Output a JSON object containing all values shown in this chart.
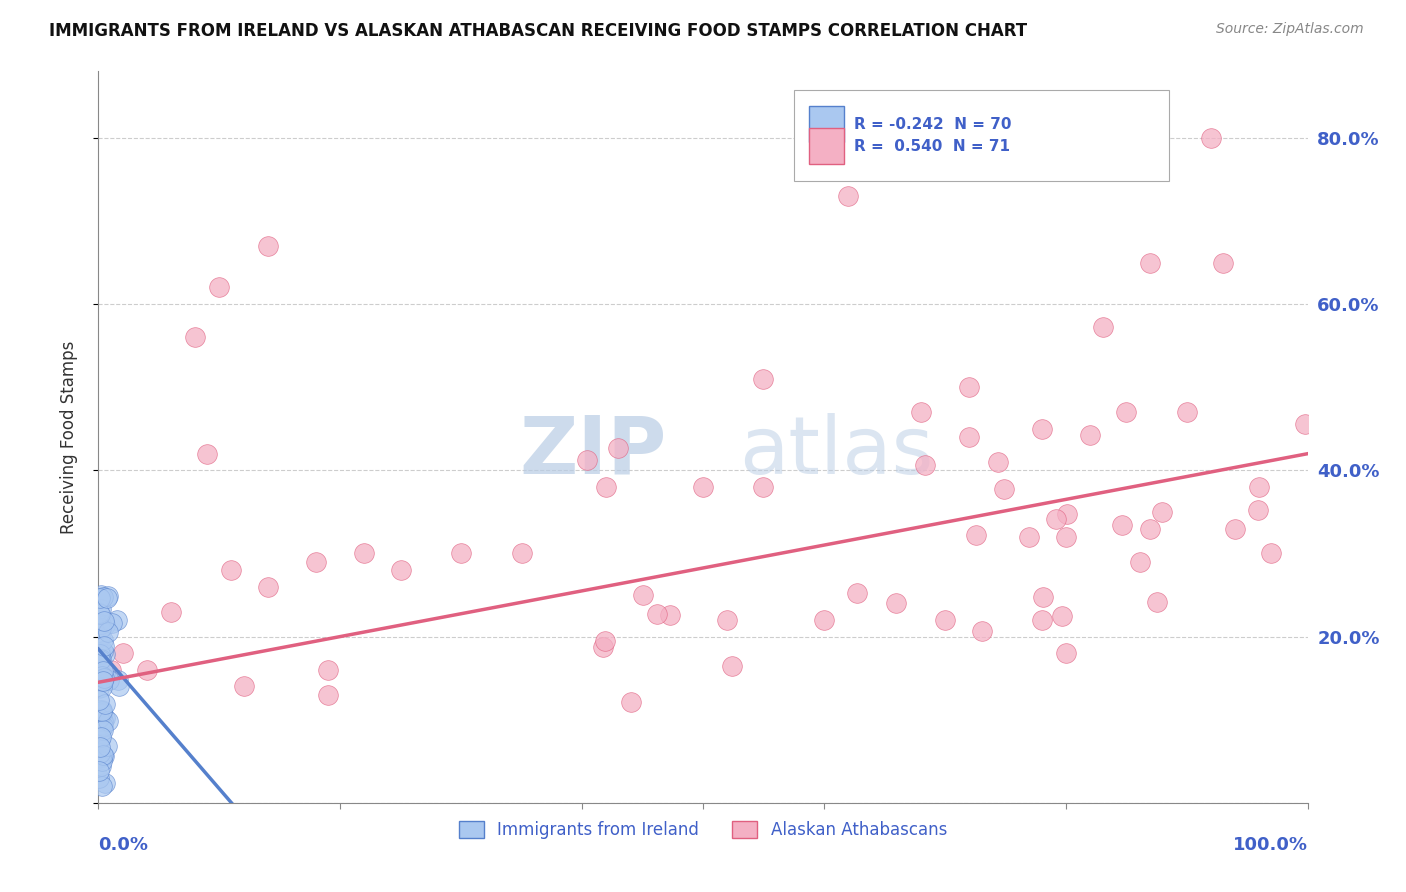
{
  "title": "IMMIGRANTS FROM IRELAND VS ALASKAN ATHABASCAN RECEIVING FOOD STAMPS CORRELATION CHART",
  "source": "Source: ZipAtlas.com",
  "ylabel": "Receiving Food Stamps",
  "xlim": [
    0,
    1.0
  ],
  "ylim": [
    0,
    0.88
  ],
  "ytick_positions": [
    0.0,
    0.2,
    0.4,
    0.6,
    0.8
  ],
  "yticklabels_right": [
    "",
    "20.0%",
    "40.0%",
    "60.0%",
    "80.0%"
  ],
  "color_ireland": "#aac8f0",
  "color_athabascan": "#f4b0c4",
  "color_text_blue": "#4060c8",
  "line_ireland": "#5580cc",
  "line_athabascan": "#e06080",
  "watermark_zip": "ZIP",
  "watermark_atlas": "atlas",
  "grid_color": "#c8c8c8",
  "background_color": "#ffffff",
  "ireland_line_x0": 0.0,
  "ireland_line_x1": 0.11,
  "ireland_line_y0": 0.185,
  "ireland_line_y1": 0.0,
  "athabascan_line_x0": 0.0,
  "athabascan_line_x1": 1.0,
  "athabascan_line_y0": 0.145,
  "athabascan_line_y1": 0.42,
  "legend_r1": "R = -0.242",
  "legend_n1": "N = 70",
  "legend_r2": "R =  0.540",
  "legend_n2": "N = 71"
}
